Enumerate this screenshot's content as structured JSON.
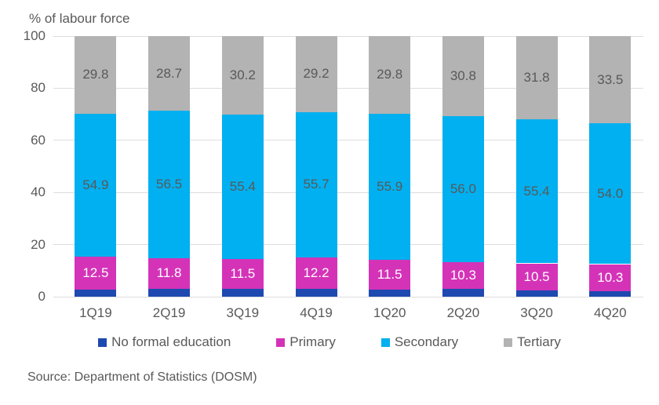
{
  "chart_data": {
    "type": "bar",
    "stacked": true,
    "title": "% of labour force",
    "categories": [
      "1Q19",
      "2Q19",
      "3Q19",
      "4Q19",
      "1Q20",
      "2Q20",
      "3Q20",
      "4Q20"
    ],
    "series": [
      {
        "name": "No formal education",
        "color": "#1E49B0",
        "values": [
          2.8,
          3.0,
          2.9,
          2.9,
          2.8,
          2.9,
          2.3,
          2.2
        ],
        "show_labels": false,
        "label_color": "#FFFFFF"
      },
      {
        "name": "Primary",
        "color": "#D433B8",
        "values": [
          12.5,
          11.8,
          11.5,
          12.2,
          11.5,
          10.3,
          10.5,
          10.3
        ],
        "show_labels": true,
        "label_color": "#FFFFFF"
      },
      {
        "name": "Secondary",
        "color": "#00B0F0",
        "values": [
          54.9,
          56.5,
          55.4,
          55.7,
          55.9,
          56.0,
          55.4,
          54.0
        ],
        "show_labels": true,
        "label_color": "#595959"
      },
      {
        "name": "Tertiary",
        "color": "#B3B3B3",
        "values": [
          29.8,
          28.7,
          30.2,
          29.2,
          29.8,
          30.8,
          31.8,
          33.5
        ],
        "show_labels": true,
        "label_color": "#595959"
      }
    ],
    "y_ticks": [
      0,
      20,
      40,
      60,
      80,
      100
    ],
    "ylim": [
      0,
      100
    ],
    "grid": true,
    "legend_position": "bottom",
    "gridline_color": "#DDDDDD",
    "text_color": "#595959"
  },
  "source_note": "Source: Department of Statistics (DOSM)"
}
